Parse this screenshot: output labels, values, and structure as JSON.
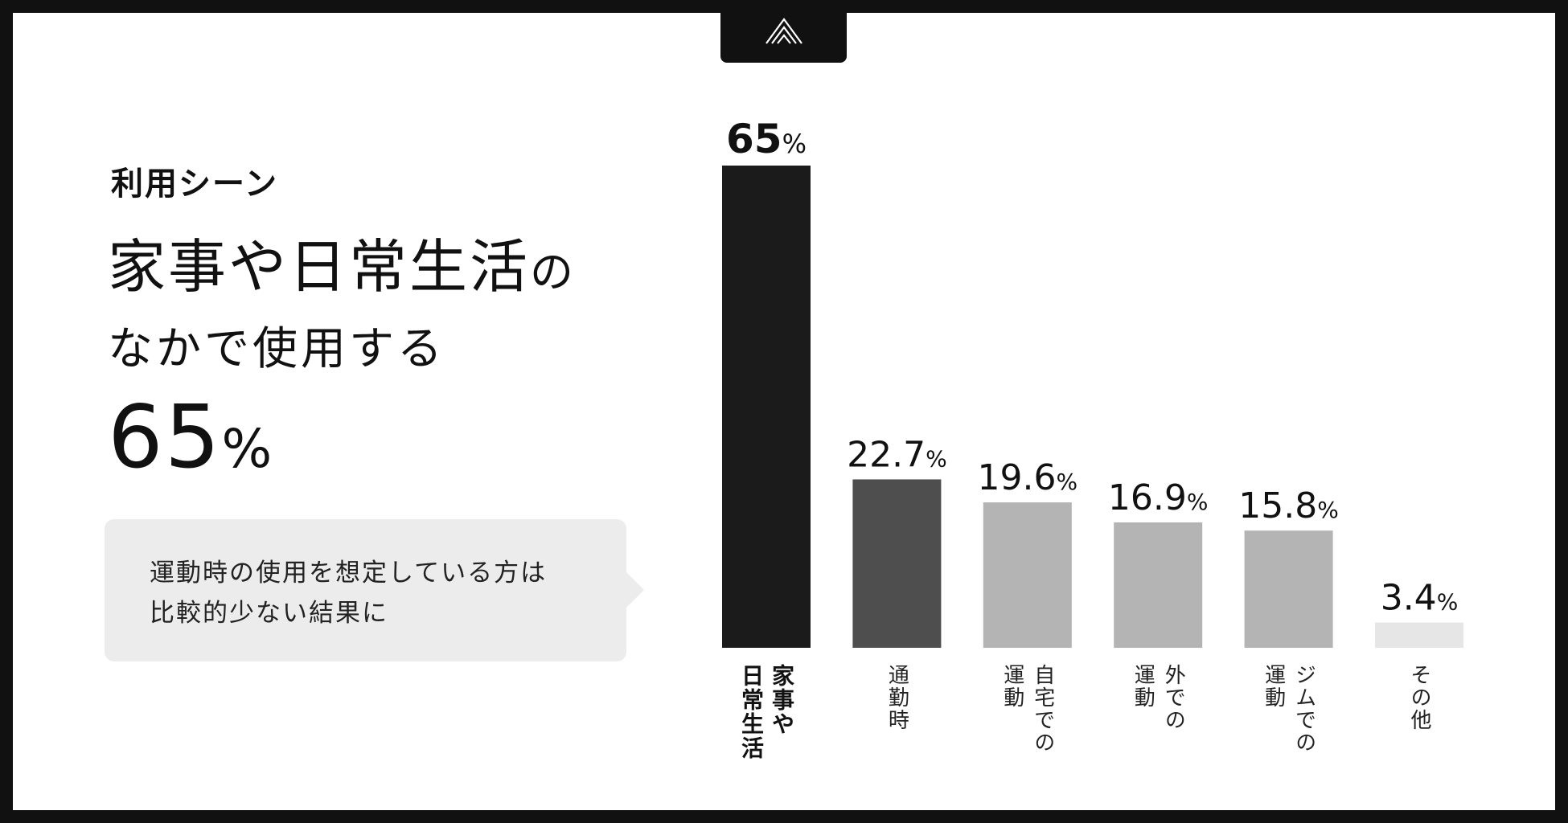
{
  "header": {
    "eyebrow": "利用シーン",
    "headline_line1": "家事や日常生活",
    "headline_no": "の",
    "headline_line2": "なかで使用する",
    "big_value": "65",
    "big_unit": "%"
  },
  "callout": {
    "text": "運動時の使用を想定している方は\n比較的少ない結果に"
  },
  "logo": {
    "icon": "triple-chevron-logo-icon"
  },
  "colors": {
    "highlight": "#1b1b1b",
    "secondary": "#4e4e4e",
    "neutral": "#b4b4b4",
    "light": "#e6e6e6",
    "callout_bg": "#ececec",
    "frame": "#111111"
  },
  "chart_data": {
    "type": "bar",
    "categories": [
      "家事や\n日常生活",
      "通勤時",
      "自宅での\n運動",
      "外での\n運動",
      "ジムでの\n運動",
      "その他"
    ],
    "values": [
      65,
      22.7,
      19.6,
      16.9,
      15.8,
      3.4
    ],
    "value_labels": [
      "65",
      "22.7",
      "19.6",
      "16.9",
      "15.8",
      "3.4"
    ],
    "unit": "%",
    "title": "",
    "xlabel": "",
    "ylabel": "",
    "ylim": [
      0,
      65
    ],
    "grid": false,
    "legend": "none",
    "bar_colors": [
      "#1b1b1b",
      "#4e4e4e",
      "#b4b4b4",
      "#b4b4b4",
      "#b4b4b4",
      "#e6e6e6"
    ],
    "highlight_index": 0
  }
}
